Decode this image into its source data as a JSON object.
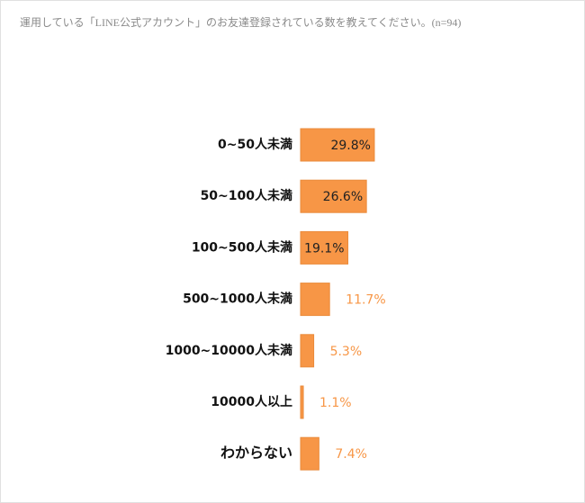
{
  "chart_data": {
    "type": "bar",
    "orientation": "horizontal",
    "title": "運用している「LINE公式アカウント」のお友達登録されている数を教えてください。(n=94)",
    "categories": [
      "0~50人未満",
      "50~100人未満",
      "100~500人未満",
      "500~1000人未満",
      "1000~10000人未満",
      "10000人以上",
      "わからない"
    ],
    "values": [
      29.8,
      26.6,
      19.1,
      11.7,
      5.3,
      1.1,
      7.4
    ],
    "value_labels": [
      "29.8%",
      "26.6%",
      "19.1%",
      "11.7%",
      "5.3%",
      "1.1%",
      "7.4%"
    ],
    "color": "#f79646"
  }
}
